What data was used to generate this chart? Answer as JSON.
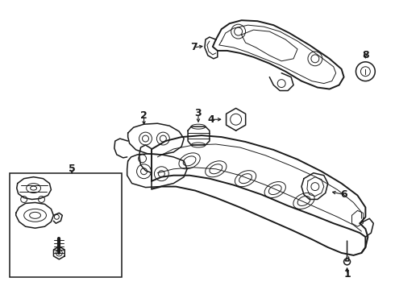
{
  "bg_color": "#ffffff",
  "line_color": "#1a1a1a",
  "fig_width": 4.9,
  "fig_height": 3.6,
  "dpi": 100,
  "lw": 1.1,
  "lw_thin": 0.7,
  "lw_thick": 1.4
}
